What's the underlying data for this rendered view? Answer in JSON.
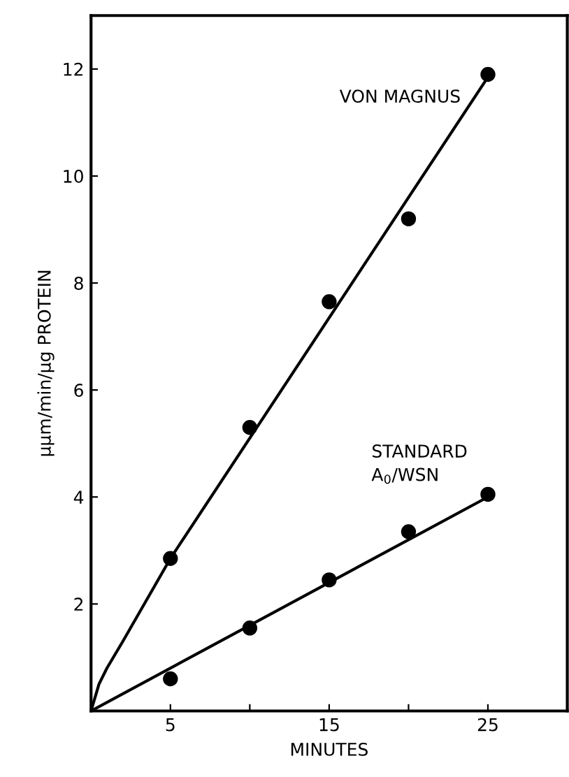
{
  "chart_data": {
    "type": "scatter",
    "xlabel": "MINUTES",
    "ylabel": "μμm/min/μg PROTEIN",
    "xlim": [
      0,
      30
    ],
    "ylim": [
      0,
      13
    ],
    "xticks": [
      5,
      {
        "value": 10,
        "label": null
      },
      15,
      {
        "value": 20,
        "label": null
      },
      25
    ],
    "yticks": [
      2,
      4,
      6,
      8,
      10,
      12
    ],
    "grid": false,
    "legend": false,
    "line_style": "solid",
    "series": [
      {
        "name": "VON MAGNUS",
        "color": "#000000",
        "marker": "circle",
        "x": [
          5,
          10,
          15,
          20,
          25
        ],
        "values": [
          2.85,
          5.3,
          7.65,
          9.2,
          11.9
        ]
      },
      {
        "name": "STANDARD\nA$_{0}$/WSN",
        "color": "#000000",
        "marker": "circle",
        "x": [
          5,
          10,
          15,
          20,
          25
        ],
        "values": [
          0.6,
          1.55,
          2.45,
          3.35,
          4.05
        ]
      },
      {
        "type": "line",
        "marker": "none",
        "color": "#000000",
        "x": [
          0,
          0.5,
          1,
          2,
          5,
          25
        ],
        "values": [
          0,
          0.5,
          0.8,
          1.3,
          2.85,
          11.85
        ]
      },
      {
        "type": "line",
        "marker": "none",
        "color": "#000000",
        "x": [
          0,
          25
        ],
        "values": [
          0,
          4.0
        ]
      }
    ]
  }
}
